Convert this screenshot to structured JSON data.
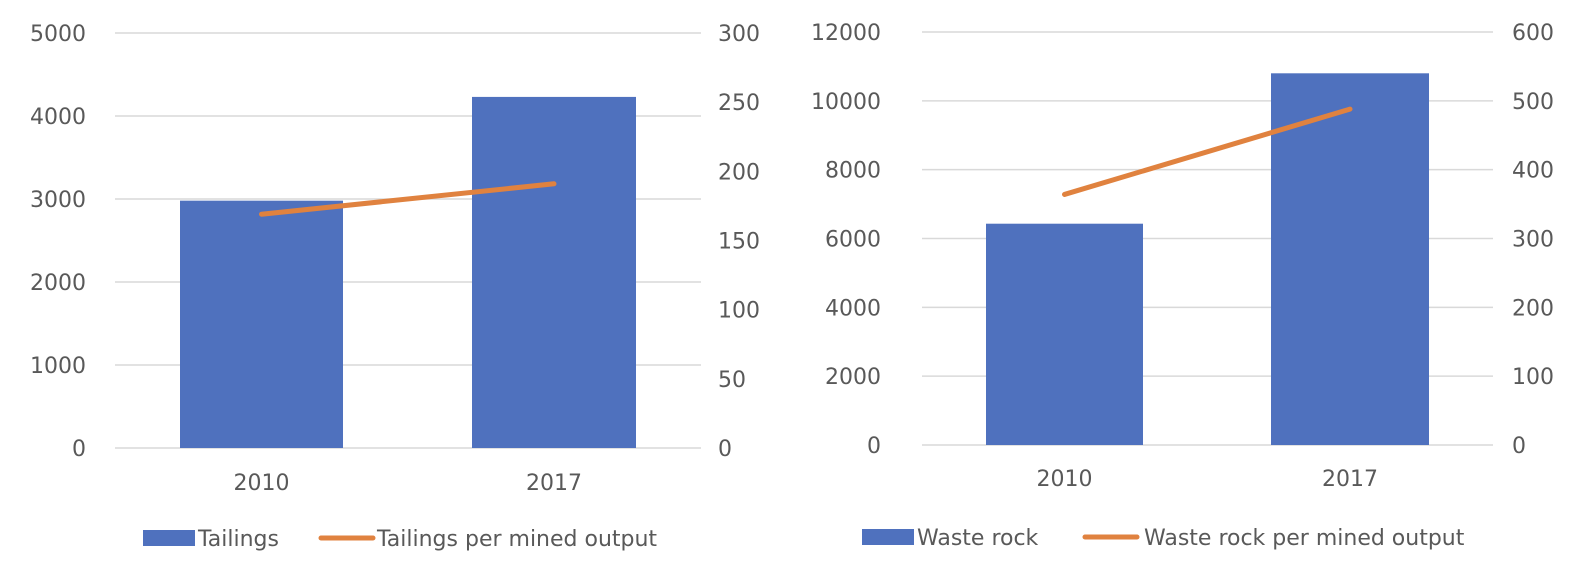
{
  "colors": {
    "bar": "#4F71BE",
    "line": "#E0823F",
    "grid": "#D9D9D9",
    "text": "#595959"
  },
  "chart_data": [
    {
      "type": "bar+line",
      "title": "",
      "categories": [
        "2010",
        "2017"
      ],
      "series": [
        {
          "name": "Tailings",
          "type": "bar",
          "axis": "left",
          "values": [
            2980,
            4230
          ]
        },
        {
          "name": "Tailings per mined output",
          "type": "line",
          "axis": "right",
          "values": [
            169,
            191
          ]
        }
      ],
      "left_axis": {
        "ylim": [
          0,
          5000
        ],
        "ticks": [
          "5000",
          "4000",
          "3000",
          "2000",
          "1000",
          "0"
        ]
      },
      "right_axis": {
        "ylim": [
          0,
          300
        ],
        "ticks": [
          "300",
          "250",
          "200",
          "150",
          "100",
          "50",
          "0"
        ]
      },
      "grid": true,
      "legend_position": "bottom"
    },
    {
      "type": "bar+line",
      "title": "",
      "categories": [
        "2010",
        "2017"
      ],
      "series": [
        {
          "name": "Waste rock",
          "type": "bar",
          "axis": "left",
          "values": [
            6430,
            10800
          ]
        },
        {
          "name": "Waste rock per mined output",
          "type": "line",
          "axis": "right",
          "values": [
            364,
            488
          ]
        }
      ],
      "left_axis": {
        "ylim": [
          0,
          12000
        ],
        "ticks": [
          "12000",
          "10000",
          "8000",
          "6000",
          "4000",
          "2000",
          "0"
        ]
      },
      "right_axis": {
        "ylim": [
          0,
          600
        ],
        "ticks": [
          "600",
          "500",
          "400",
          "300",
          "200",
          "100",
          "0"
        ]
      },
      "grid": true,
      "legend_position": "bottom"
    }
  ]
}
